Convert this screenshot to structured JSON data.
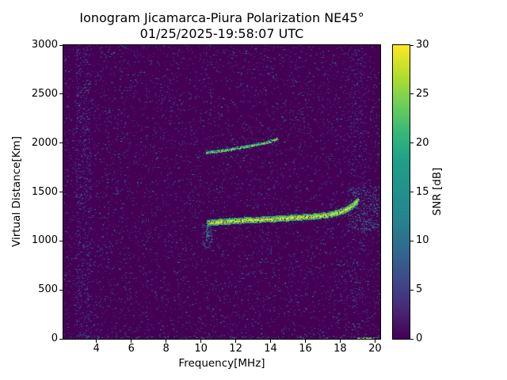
{
  "chart_data": {
    "type": "heatmap",
    "title": "Ionogram Jicamarca-Piura Polarization NE45°",
    "subtitle": "01/25/2025-19:58:07 UTC",
    "xlabel": "Frequency[MHz]",
    "ylabel": "Virtual Distance[Km]",
    "colorbar_label": "SNR [dB]",
    "colormap": "viridis",
    "xlim": [
      2.1,
      20.3
    ],
    "ylim": [
      0,
      3000
    ],
    "clim": [
      0,
      30
    ],
    "xticks": [
      4,
      6,
      8,
      10,
      12,
      14,
      16,
      18,
      20
    ],
    "yticks": [
      0,
      500,
      1000,
      1500,
      2000,
      2500,
      3000
    ],
    "colorbar_ticks": [
      0,
      5,
      10,
      15,
      20,
      25,
      30
    ],
    "background_snr_db": 0,
    "grid": false,
    "noise": {
      "base_density": 0.045,
      "snr_range_db": [
        2,
        16
      ],
      "regions": [
        {
          "x": [
            2.8,
            3.7
          ],
          "y": [
            0,
            3000
          ],
          "density": 0.09,
          "snr": [
            3,
            14
          ]
        },
        {
          "x": [
            18.55,
            19.45
          ],
          "y": [
            0,
            3000
          ],
          "density": 0.05,
          "snr": [
            3,
            12
          ]
        },
        {
          "x": [
            18.4,
            20.2
          ],
          "y": [
            1100,
            1560
          ],
          "density": 0.16,
          "snr": [
            5,
            18
          ]
        },
        {
          "x": [
            2.1,
            20.3
          ],
          "y": [
            0,
            30
          ],
          "density": 0.12,
          "snr": [
            4,
            18
          ]
        },
        {
          "x": [
            10.05,
            10.6
          ],
          "y": [
            930,
            1190
          ],
          "density": 0.18,
          "snr": [
            6,
            20
          ]
        }
      ]
    },
    "echo_traces": [
      {
        "name": "F-region echo",
        "snr_db": 30,
        "thickness_km": 60,
        "density": 0.92,
        "points": [
          [
            10.35,
            1185
          ],
          [
            10.8,
            1192
          ],
          [
            11.5,
            1202
          ],
          [
            12.5,
            1212
          ],
          [
            13.5,
            1220
          ],
          [
            14.5,
            1230
          ],
          [
            15.5,
            1240
          ],
          [
            16.5,
            1252
          ],
          [
            17.2,
            1265
          ],
          [
            17.8,
            1288
          ],
          [
            18.3,
            1318
          ],
          [
            18.7,
            1362
          ],
          [
            19.0,
            1415
          ]
        ]
      },
      {
        "name": "second hop echo",
        "snr_db": 26,
        "thickness_km": 30,
        "density": 0.8,
        "points": [
          [
            10.3,
            1900
          ],
          [
            11.0,
            1916
          ],
          [
            11.8,
            1940
          ],
          [
            12.6,
            1964
          ],
          [
            13.3,
            1988
          ],
          [
            13.9,
            2012
          ],
          [
            14.4,
            2048
          ]
        ]
      },
      {
        "name": "leading edge spread",
        "snr_db": 18,
        "thickness_km": 14,
        "density": 0.4,
        "points": [
          [
            10.28,
            990
          ],
          [
            10.33,
            1100
          ],
          [
            10.38,
            1185
          ]
        ]
      },
      {
        "name": "ground clutter",
        "snr_db": 28,
        "thickness_km": 16,
        "density": 0.6,
        "points": [
          [
            18.95,
            8
          ],
          [
            19.55,
            8
          ],
          [
            20.15,
            8
          ]
        ]
      }
    ]
  }
}
